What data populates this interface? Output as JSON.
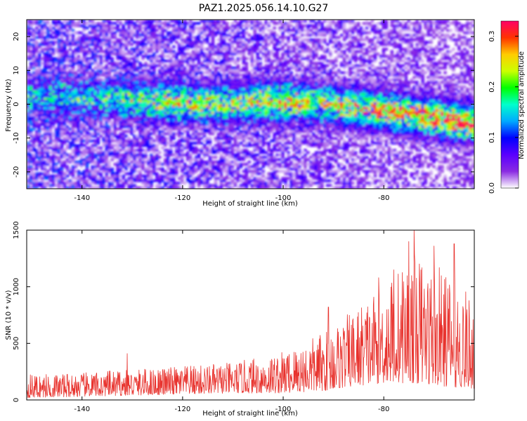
{
  "title": "PAZ1.2025.056.14.10.G27",
  "colors": {
    "line": "#e8332e",
    "axis": "#000000",
    "background": "#ffffff",
    "colormap": [
      "#ffffff",
      "#8a2be2",
      "#5a00ff",
      "#0000ff",
      "#00aaff",
      "#00ffcc",
      "#00ff00",
      "#ccff00",
      "#ffcc00",
      "#ff3300",
      "#ff0066"
    ]
  },
  "chart_data": [
    {
      "type": "heatmap",
      "title": "",
      "xlabel": "Height of straight line (km)",
      "ylabel": "Frequency (Hz)",
      "xlim": [
        -151,
        -62
      ],
      "ylim": [
        -25,
        25
      ],
      "x_ticks": [
        -140,
        -120,
        -100,
        -80
      ],
      "y_ticks": [
        -20,
        -10,
        0,
        10,
        20
      ],
      "colorbar": {
        "label": "Normalized spectral amplitude",
        "range": [
          0.0,
          0.33
        ],
        "ticks": [
          0.0,
          0.1,
          0.2,
          0.3
        ]
      },
      "ridge": {
        "description": "signal band",
        "points": [
          {
            "x": -148,
            "y": 2.5,
            "amp": 0.1
          },
          {
            "x": -140,
            "y": 2.0,
            "amp": 0.12
          },
          {
            "x": -132,
            "y": 1.5,
            "amp": 0.15
          },
          {
            "x": -122,
            "y": 0.5,
            "amp": 0.22
          },
          {
            "x": -112,
            "y": 0.0,
            "amp": 0.2
          },
          {
            "x": -100,
            "y": 1.0,
            "amp": 0.26
          },
          {
            "x": -92,
            "y": 0.0,
            "amp": 0.22
          },
          {
            "x": -82,
            "y": -1.5,
            "amp": 0.28
          },
          {
            "x": -72,
            "y": -3.5,
            "amp": 0.3
          },
          {
            "x": -64,
            "y": -5.5,
            "amp": 0.33
          }
        ]
      }
    },
    {
      "type": "line",
      "title": "",
      "xlabel": "Height of straight line (km)",
      "ylabel": "SNR (10 * v/v)",
      "xlim": [
        -151,
        -62
      ],
      "ylim": [
        0,
        1500
      ],
      "x_ticks": [
        -140,
        -120,
        -100,
        -80
      ],
      "y_ticks": [
        0,
        500,
        1000,
        1500
      ],
      "series": [
        {
          "envelope": [
            {
              "x": -151,
              "low": 20,
              "high": 230
            },
            {
              "x": -140,
              "low": 30,
              "high": 240
            },
            {
              "x": -130,
              "low": 40,
              "high": 270
            },
            {
              "x": -120,
              "low": 50,
              "high": 300
            },
            {
              "x": -110,
              "low": 60,
              "high": 330
            },
            {
              "x": -100,
              "low": 60,
              "high": 430
            },
            {
              "x": -92,
              "low": 80,
              "high": 600
            },
            {
              "x": -86,
              "low": 120,
              "high": 800
            },
            {
              "x": -80,
              "low": 150,
              "high": 1050
            },
            {
              "x": -74,
              "low": 150,
              "high": 1300
            },
            {
              "x": -68,
              "low": 120,
              "high": 1150
            },
            {
              "x": -62,
              "low": 100,
              "high": 900
            }
          ],
          "peaks": [
            {
              "x": -131,
              "y": 410
            },
            {
              "x": -91,
              "y": 820
            },
            {
              "x": -81,
              "y": 1080
            },
            {
              "x": -78,
              "y": 1150
            },
            {
              "x": -75,
              "y": 1400
            },
            {
              "x": -74,
              "y": 1500
            },
            {
              "x": -70,
              "y": 1360
            },
            {
              "x": -66,
              "y": 1380
            }
          ]
        }
      ]
    }
  ]
}
